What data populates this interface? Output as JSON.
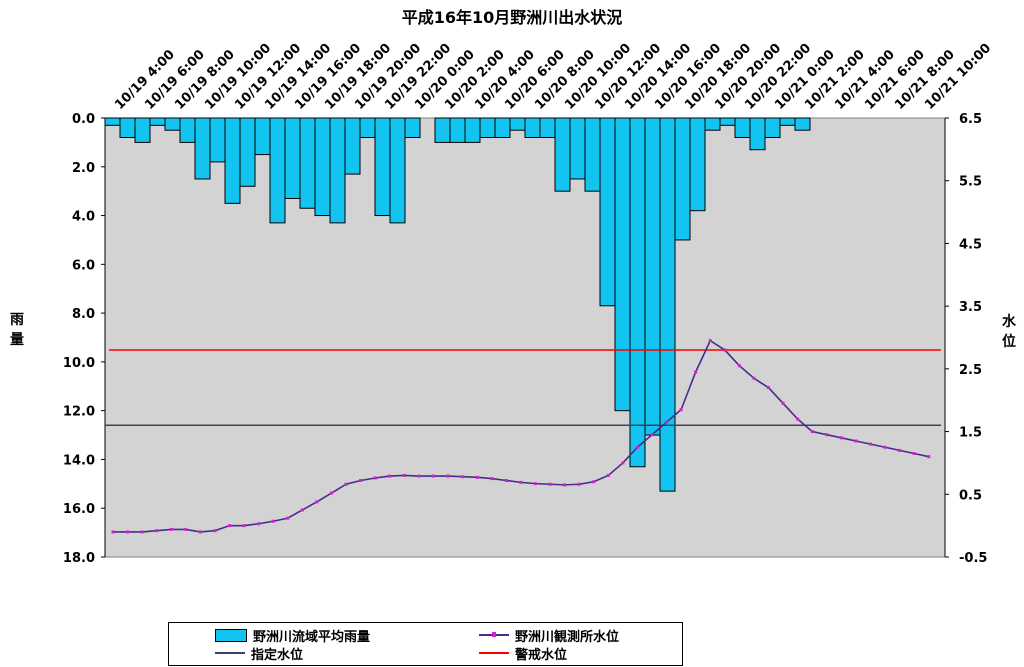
{
  "chart_data": {
    "type": "bar+line",
    "title": "平成16年10月野洲川出水状況",
    "y_left_label": "雨量",
    "y_right_label": "水位",
    "y_left_ticks": [
      "0.0",
      "2.0",
      "4.0",
      "6.0",
      "8.0",
      "10.0",
      "12.0",
      "14.0",
      "16.0",
      "18.0"
    ],
    "y_right_ticks": [
      "6.5",
      "5.5",
      "4.5",
      "3.5",
      "2.5",
      "1.5",
      "0.5",
      "-0.5"
    ],
    "y_left_range": [
      0,
      18
    ],
    "y_left_inverted": true,
    "y_right_range": [
      -0.5,
      6.5
    ],
    "x_tick_labels": [
      "10/19 4:00",
      "10/19 6:00",
      "10/19 8:00",
      "10/19 10:00",
      "10/19 12:00",
      "10/19 14:00",
      "10/19 16:00",
      "10/19 18:00",
      "10/19 20:00",
      "10/19 22:00",
      "10/20 0:00",
      "10/20 2:00",
      "10/20 4:00",
      "10/20 6:00",
      "10/20 8:00",
      "10/20 10:00",
      "10/20 12:00",
      "10/20 14:00",
      "10/20 16:00",
      "10/20 18:00",
      "10/20 20:00",
      "10/20 22:00",
      "10/21 0:00",
      "10/21 2:00",
      "10/21 4:00",
      "10/21 6:00",
      "10/21 8:00",
      "10/21 10:00"
    ],
    "rainfall": {
      "name": "野洲川流域平均雨量",
      "color": "#14c4f0",
      "values": [
        0.3,
        0.8,
        1.0,
        0.3,
        0.5,
        1.0,
        2.5,
        1.8,
        3.5,
        2.8,
        1.5,
        4.3,
        3.3,
        3.7,
        4.0,
        4.3,
        2.3,
        0.8,
        4.0,
        4.3,
        0.8,
        0,
        1.0,
        1.0,
        1.0,
        0.8,
        0.8,
        0.5,
        0.8,
        0.8,
        3.0,
        2.5,
        3.0,
        7.7,
        12.0,
        14.3,
        13.0,
        15.3,
        5.0,
        3.8,
        0.5,
        0.3,
        0.8,
        1.3,
        0.8,
        0.3,
        0.5,
        0,
        0,
        0,
        0,
        0,
        0,
        0,
        0,
        0
      ]
    },
    "water_level": {
      "name": "野洲川観測所水位",
      "color": "#4a2a8c",
      "marker_color": "#d020d0",
      "values": [
        -0.1,
        -0.1,
        -0.1,
        -0.08,
        -0.06,
        -0.06,
        -0.1,
        -0.08,
        0.0,
        0.0,
        0.03,
        0.07,
        0.12,
        0.25,
        0.38,
        0.52,
        0.66,
        0.72,
        0.76,
        0.79,
        0.8,
        0.79,
        0.79,
        0.79,
        0.78,
        0.77,
        0.75,
        0.72,
        0.69,
        0.67,
        0.66,
        0.65,
        0.66,
        0.7,
        0.8,
        1.0,
        1.25,
        1.45,
        1.65,
        1.85,
        2.45,
        2.95,
        2.8,
        2.55,
        2.35,
        2.2,
        1.95,
        1.7,
        1.5,
        1.45,
        1.4,
        1.35,
        1.3,
        1.25,
        1.2,
        1.15,
        1.1
      ]
    },
    "designated_level": {
      "name": "指定水位",
      "value": 1.6,
      "color": "#404060"
    },
    "warning_level": {
      "name": "警戒水位",
      "value": 2.8,
      "color": "#ff0000"
    },
    "background": "#d3d3d3",
    "legend": "bottom"
  }
}
